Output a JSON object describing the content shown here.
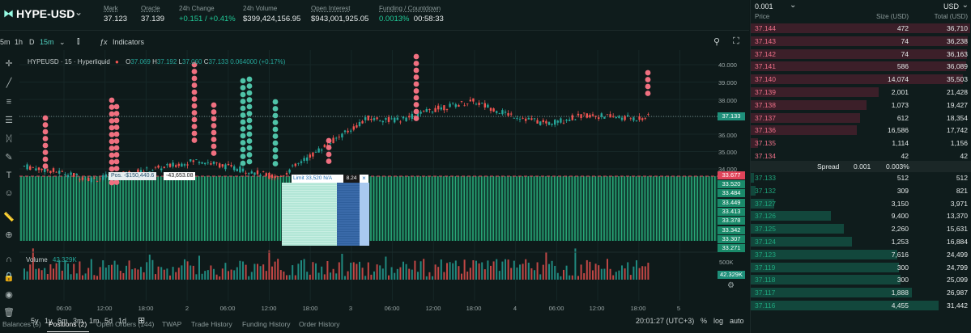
{
  "market": {
    "symbol": "HYPE-USD",
    "stats": [
      {
        "label": "Mark",
        "value": "37.123",
        "underline": true
      },
      {
        "label": "Oracle",
        "value": "37.139",
        "underline": true
      },
      {
        "label": "24h Change",
        "value": "+0.151 / +0.41%",
        "positive": true
      },
      {
        "label": "24h Volume",
        "value": "$399,424,156.95"
      },
      {
        "label": "Open Interest",
        "value": "$943,001,925.05",
        "underline": true
      },
      {
        "label": "Funding / Countdown",
        "funding": "0.0013%",
        "countdown": "00:58:33",
        "underline": true
      }
    ]
  },
  "chart_toolbar": {
    "timeframes": [
      "5m",
      "1h",
      "D",
      "15m"
    ],
    "active": "15m",
    "indicators_label": "Indicators"
  },
  "chart": {
    "legend_title": "HYPEUSD · 15 · Hyperliquid",
    "ohlc": {
      "o": "37.069",
      "h": "37.192",
      "l": "37.060",
      "c": "37.133",
      "chg": "0.064000 (+0.17%)"
    },
    "position_label": "Pos. -$150,440.6",
    "position_value": "-43,653.08",
    "limit_label": "Limit 33,520 N/A",
    "limit_qty": "8.24",
    "price_ticks": [
      "40.000",
      "39.000",
      "38.000",
      "37.000",
      "36.000",
      "35.000",
      "34.000"
    ],
    "ladder_ticks": [
      "33.520",
      "33.484",
      "33.449",
      "33.413",
      "33.378",
      "33.342",
      "33.307",
      "33.271"
    ],
    "current_price": "37.133",
    "line_price": "33.677",
    "volume_label": "Volume",
    "volume_value": "42.329K",
    "volume_tick": "500K",
    "volume_current": "42.329K",
    "time_ticks": [
      "06:00",
      "12:00",
      "18:00",
      "2",
      "06:00",
      "12:00",
      "18:00",
      "3",
      "06:00",
      "12:00",
      "18:00",
      "4",
      "06:00",
      "12:00",
      "18:00",
      "5"
    ],
    "colors": {
      "up": "#26a69a",
      "down": "#ef5350",
      "ladder": "#2ebd85"
    }
  },
  "chart_footer": {
    "ranges": [
      "5y",
      "1y",
      "6m",
      "3m",
      "1m",
      "5d",
      "1d"
    ],
    "clock": "20:01:27 (UTC+3)",
    "options": [
      "%",
      "log",
      "auto"
    ]
  },
  "tabs": [
    "Balances (5)",
    "Positions (2)",
    "Open Orders (144)",
    "TWAP",
    "Trade History",
    "Funding History",
    "Order History"
  ],
  "active_tab": "Positions (2)",
  "book": {
    "tick": "0.001",
    "currency": "USD",
    "headers": {
      "price": "Price",
      "size": "Size (USD)",
      "total": "Total (USD)"
    },
    "asks": [
      {
        "price": "37.144",
        "size": "472",
        "total": "36,710"
      },
      {
        "price": "37.143",
        "size": "74",
        "total": "36,238"
      },
      {
        "price": "37.142",
        "size": "74",
        "total": "36,163"
      },
      {
        "price": "37.141",
        "size": "586",
        "total": "36,089"
      },
      {
        "price": "37.140",
        "size": "14,074",
        "total": "35,503"
      },
      {
        "price": "37.139",
        "size": "2,001",
        "total": "21,428"
      },
      {
        "price": "37.138",
        "size": "1,073",
        "total": "19,427"
      },
      {
        "price": "37.137",
        "size": "612",
        "total": "18,354"
      },
      {
        "price": "37.136",
        "size": "16,586",
        "total": "17,742"
      },
      {
        "price": "37.135",
        "size": "1,114",
        "total": "1,156"
      },
      {
        "price": "37.134",
        "size": "42",
        "total": "42"
      }
    ],
    "spread": {
      "label": "Spread",
      "value": "0.001",
      "pct": "0.003%"
    },
    "bids": [
      {
        "price": "37.133",
        "size": "512",
        "total": "512"
      },
      {
        "price": "37.132",
        "size": "309",
        "total": "821"
      },
      {
        "price": "37.127",
        "size": "3,150",
        "total": "3,971"
      },
      {
        "price": "37.126",
        "size": "9,400",
        "total": "13,370"
      },
      {
        "price": "37.125",
        "size": "2,260",
        "total": "15,631"
      },
      {
        "price": "37.124",
        "size": "1,253",
        "total": "16,884"
      },
      {
        "price": "37.123",
        "size": "7,616",
        "total": "24,499"
      },
      {
        "price": "37.119",
        "size": "300",
        "total": "24,799"
      },
      {
        "price": "37.118",
        "size": "300",
        "total": "25,099"
      },
      {
        "price": "37.117",
        "size": "1,888",
        "total": "26,987"
      },
      {
        "price": "37.116",
        "size": "4,455",
        "total": "31,442"
      }
    ]
  }
}
